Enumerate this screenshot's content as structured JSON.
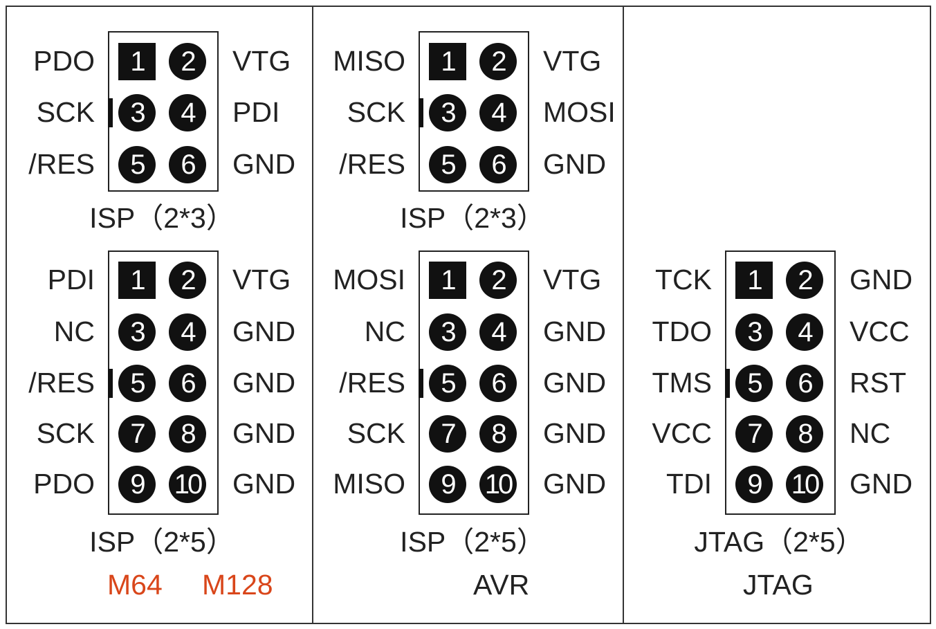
{
  "colors": {
    "pin_fill": "#111111",
    "pin_text": "#ffffff",
    "accent": "#d9461a",
    "text": "#222222"
  },
  "panels": [
    {
      "connectors": [
        {
          "caption": "ISP（2*3）",
          "key_row": 1,
          "rows": [
            {
              "left": "PDO",
              "pin_a": "1",
              "pin_b": "2",
              "right": "VTG"
            },
            {
              "left": "SCK",
              "pin_a": "3",
              "pin_b": "4",
              "right": "PDI"
            },
            {
              "left": "/RES",
              "pin_a": "5",
              "pin_b": "6",
              "right": "GND"
            }
          ]
        },
        {
          "caption": "ISP（2*5）",
          "key_row": 2,
          "rows": [
            {
              "left": "PDI",
              "pin_a": "1",
              "pin_b": "2",
              "right": "VTG"
            },
            {
              "left": "NC",
              "pin_a": "3",
              "pin_b": "4",
              "right": "GND"
            },
            {
              "left": "/RES",
              "pin_a": "5",
              "pin_b": "6",
              "right": "GND"
            },
            {
              "left": "SCK",
              "pin_a": "7",
              "pin_b": "8",
              "right": "GND"
            },
            {
              "left": "PDO",
              "pin_a": "9",
              "pin_b": "10",
              "right": "GND"
            }
          ]
        }
      ],
      "footer": [
        "M64",
        "M128"
      ],
      "footer_color": "#d9461a"
    },
    {
      "connectors": [
        {
          "caption": "ISP（2*3）",
          "key_row": 1,
          "rows": [
            {
              "left": "MISO",
              "pin_a": "1",
              "pin_b": "2",
              "right": "VTG"
            },
            {
              "left": "SCK",
              "pin_a": "3",
              "pin_b": "4",
              "right": "MOSI"
            },
            {
              "left": "/RES",
              "pin_a": "5",
              "pin_b": "6",
              "right": "GND"
            }
          ]
        },
        {
          "caption": "ISP（2*5）",
          "key_row": 2,
          "rows": [
            {
              "left": "MOSI",
              "pin_a": "1",
              "pin_b": "2",
              "right": "VTG"
            },
            {
              "left": "NC",
              "pin_a": "3",
              "pin_b": "4",
              "right": "GND"
            },
            {
              "left": "/RES",
              "pin_a": "5",
              "pin_b": "6",
              "right": "GND"
            },
            {
              "left": "SCK",
              "pin_a": "7",
              "pin_b": "8",
              "right": "GND"
            },
            {
              "left": "MISO",
              "pin_a": "9",
              "pin_b": "10",
              "right": "GND"
            }
          ]
        }
      ],
      "footer": [
        "AVR"
      ],
      "footer_color": "#222222"
    },
    {
      "connectors": [
        {
          "caption": "JTAG（2*5）",
          "key_row": 2,
          "rows": [
            {
              "left": "TCK",
              "pin_a": "1",
              "pin_b": "2",
              "right": "GND"
            },
            {
              "left": "TDO",
              "pin_a": "3",
              "pin_b": "4",
              "right": "VCC"
            },
            {
              "left": "TMS",
              "pin_a": "5",
              "pin_b": "6",
              "right": "RST"
            },
            {
              "left": "VCC",
              "pin_a": "7",
              "pin_b": "8",
              "right": "NC"
            },
            {
              "left": "TDI",
              "pin_a": "9",
              "pin_b": "10",
              "right": "GND"
            }
          ]
        }
      ],
      "footer": [
        "JTAG"
      ],
      "footer_color": "#222222"
    }
  ]
}
